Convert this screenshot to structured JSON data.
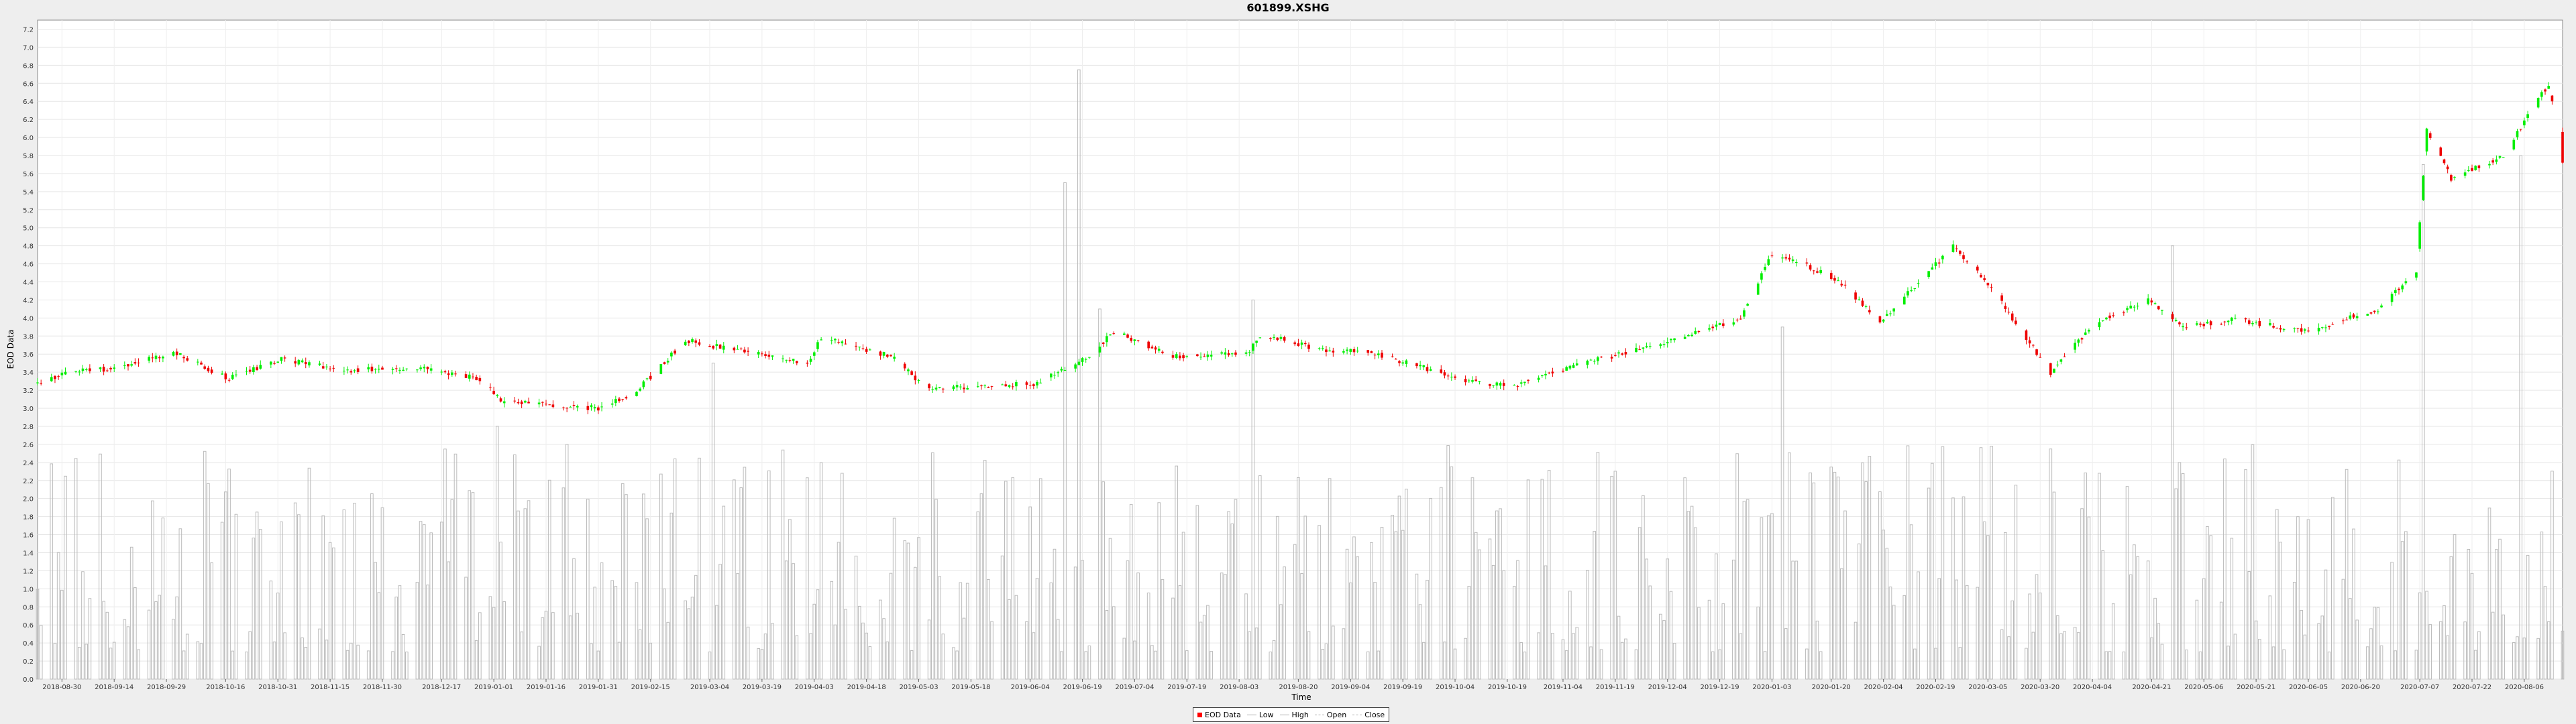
{
  "chart_data": {
    "type": "candlestick",
    "title": "601899.XSHG",
    "xlabel": "Time",
    "ylabel": "EOD Data",
    "ylim": [
      0,
      7.3
    ],
    "yticks": [
      0.0,
      0.2,
      0.4,
      0.6,
      0.8,
      1.0,
      1.2,
      1.4,
      1.6,
      1.8,
      2.0,
      2.2,
      2.4,
      2.6,
      2.8,
      3.0,
      3.2,
      3.4,
      3.6,
      3.8,
      4.0,
      4.2,
      4.4,
      4.6,
      4.8,
      5.0,
      5.2,
      5.4,
      5.6,
      5.8,
      6.0,
      6.2,
      6.4,
      6.6,
      6.8,
      7.0,
      7.2
    ],
    "date_range": [
      "2018-08-23",
      "2020-08-17"
    ],
    "xticks": [
      "2018-08-30",
      "2018-09-14",
      "2018-09-29",
      "2018-10-16",
      "2018-10-31",
      "2018-11-15",
      "2018-11-30",
      "2018-12-17",
      "2019-01-01",
      "2019-01-16",
      "2019-01-31",
      "2019-02-15",
      "2019-03-04",
      "2019-03-19",
      "2019-04-03",
      "2019-04-18",
      "2019-05-03",
      "2019-05-18",
      "2019-06-04",
      "2019-06-19",
      "2019-07-04",
      "2019-07-19",
      "2019-08-03",
      "2019-08-20",
      "2019-09-04",
      "2019-09-19",
      "2019-10-04",
      "2019-10-19",
      "2019-11-04",
      "2019-11-19",
      "2019-12-04",
      "2019-12-19",
      "2020-01-03",
      "2020-01-20",
      "2020-02-04",
      "2020-02-19",
      "2020-03-05",
      "2020-03-20",
      "2020-04-04",
      "2020-04-21",
      "2020-05-06",
      "2020-05-21",
      "2020-06-05",
      "2020-06-20",
      "2020-07-07",
      "2020-07-22",
      "2020-08-06"
    ],
    "price_path": [
      [
        "2018-08-23",
        3.28
      ],
      [
        "2018-09-01",
        3.4
      ],
      [
        "2018-09-15",
        3.45
      ],
      [
        "2018-10-01",
        3.62
      ],
      [
        "2018-10-17",
        3.33
      ],
      [
        "2018-11-01",
        3.55
      ],
      [
        "2018-11-20",
        3.42
      ],
      [
        "2018-12-10",
        3.45
      ],
      [
        "2018-12-28",
        3.33
      ],
      [
        "2019-01-03",
        3.08
      ],
      [
        "2019-01-31",
        3.0
      ],
      [
        "2019-02-10",
        3.15
      ],
      [
        "2019-02-25",
        3.75
      ],
      [
        "2019-03-15",
        3.62
      ],
      [
        "2019-04-01",
        3.5
      ],
      [
        "2019-04-05",
        3.78
      ],
      [
        "2019-04-25",
        3.58
      ],
      [
        "2019-05-05",
        3.22
      ],
      [
        "2019-06-05",
        3.27
      ],
      [
        "2019-06-20",
        3.55
      ],
      [
        "2019-06-28",
        3.85
      ],
      [
        "2019-07-15",
        3.58
      ],
      [
        "2019-08-05",
        3.6
      ],
      [
        "2019-08-10",
        3.82
      ],
      [
        "2019-08-25",
        3.66
      ],
      [
        "2019-09-10",
        3.62
      ],
      [
        "2019-10-08",
        3.3
      ],
      [
        "2019-10-20",
        3.24
      ],
      [
        "2019-11-15",
        3.55
      ],
      [
        "2019-12-05",
        3.74
      ],
      [
        "2019-12-25",
        4.0
      ],
      [
        "2020-01-03",
        4.7
      ],
      [
        "2020-01-15",
        4.55
      ],
      [
        "2020-01-24",
        4.35
      ],
      [
        "2020-02-03",
        3.95
      ],
      [
        "2020-02-18",
        4.55
      ],
      [
        "2020-02-24",
        4.8
      ],
      [
        "2020-03-05",
        4.38
      ],
      [
        "2020-03-23",
        3.4
      ],
      [
        "2020-04-05",
        3.95
      ],
      [
        "2020-04-20",
        4.2
      ],
      [
        "2020-04-30",
        3.9
      ],
      [
        "2020-05-15",
        3.98
      ],
      [
        "2020-06-05",
        3.85
      ],
      [
        "2020-06-25",
        4.1
      ],
      [
        "2020-07-06",
        4.5
      ],
      [
        "2020-07-09",
        6.1
      ],
      [
        "2020-07-16",
        5.55
      ],
      [
        "2020-07-31",
        5.8
      ],
      [
        "2020-08-13",
        6.6
      ],
      [
        "2020-08-17",
        5.7
      ]
    ],
    "volume_range": [
      0.3,
      2.6
    ],
    "volume_spikes": [
      [
        "2019-01-02",
        2.8
      ],
      [
        "2019-03-05",
        3.5
      ],
      [
        "2019-06-14",
        5.5
      ],
      [
        "2019-06-18",
        6.75
      ],
      [
        "2019-06-24",
        4.1
      ],
      [
        "2019-08-07",
        4.2
      ],
      [
        "2020-01-06",
        3.9
      ],
      [
        "2020-04-27",
        4.8
      ],
      [
        "2020-07-08",
        5.7
      ],
      [
        "2020-08-05",
        5.8
      ]
    ],
    "candle_colors": {
      "up": "#00ee00",
      "down": "#ee0000"
    },
    "volume_color": "#bbbbbb",
    "legend": [
      {
        "label": "EOD Data",
        "color": "#ff0000",
        "style": "box"
      },
      {
        "label": "Low",
        "color": "#aaaaaa",
        "style": "line"
      },
      {
        "label": "High",
        "color": "#aaaaaa",
        "style": "line"
      },
      {
        "label": "Open",
        "color": "#aaaaaa",
        "style": "dash"
      },
      {
        "label": "Close",
        "color": "#aaaaaa",
        "style": "dash"
      }
    ],
    "grid": true,
    "legend_position": "bottom-center"
  }
}
